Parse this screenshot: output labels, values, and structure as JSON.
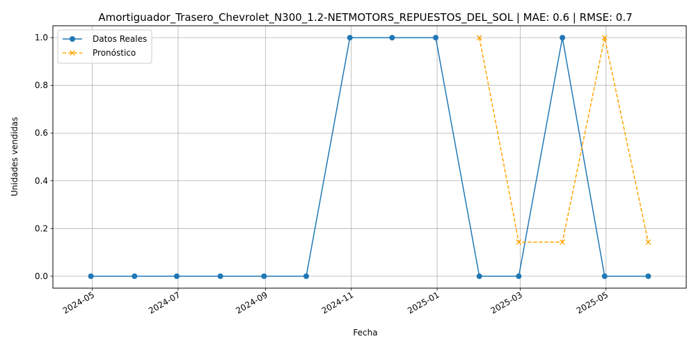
{
  "chart_data": {
    "type": "line",
    "title": "Amortiguador_Trasero_Chevrolet_N300_1.2-NETMOTORS_REPUESTOS_DEL_SOL | MAE: 0.6 | RMSE: 0.7",
    "xlabel": "Fecha",
    "ylabel": "Unidades vendidas",
    "xlim": [
      "2024-04-03",
      "2025-06-27"
    ],
    "ylim": [
      -0.05,
      1.05
    ],
    "grid": true,
    "legend_position": "top-left",
    "x_ticks": [
      "2024-05",
      "2024-07",
      "2024-09",
      "2024-11",
      "2025-01",
      "2025-03",
      "2025-05"
    ],
    "x_tick_dates": [
      "2024-05-01",
      "2024-07-01",
      "2024-09-01",
      "2024-11-01",
      "2025-01-01",
      "2025-03-01",
      "2025-05-01"
    ],
    "y_ticks": [
      "0.0",
      "0.2",
      "0.4",
      "0.6",
      "0.8",
      "1.0"
    ],
    "y_tick_values": [
      0.0,
      0.2,
      0.4,
      0.6,
      0.8,
      1.0
    ],
    "series": [
      {
        "name": "Datos Reales",
        "color": "#1f77b4",
        "marker": "circle",
        "linestyle": "solid",
        "x": [
          "2024-04-30",
          "2024-05-31",
          "2024-06-30",
          "2024-07-31",
          "2024-08-31",
          "2024-09-30",
          "2024-10-31",
          "2024-11-30",
          "2024-12-31",
          "2025-01-31",
          "2025-02-28",
          "2025-03-31",
          "2025-04-30",
          "2025-05-31"
        ],
        "y": [
          0,
          0,
          0,
          0,
          0,
          0,
          1,
          1,
          1,
          0,
          0,
          1,
          0,
          0
        ]
      },
      {
        "name": "Pronóstico",
        "color": "#ffa500",
        "marker": "x",
        "linestyle": "dashed",
        "x": [
          "2025-01-31",
          "2025-02-28",
          "2025-03-31",
          "2025-04-30",
          "2025-05-31"
        ],
        "y": [
          1.0,
          0.143,
          0.143,
          1.0,
          0.143
        ]
      }
    ]
  }
}
